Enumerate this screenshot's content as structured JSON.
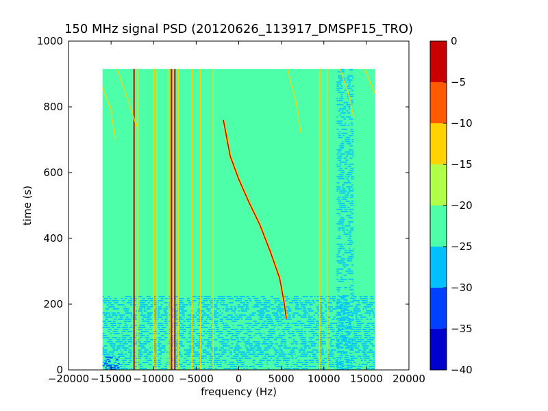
{
  "chart_data": {
    "type": "heatmap",
    "title": "150 MHz signal PSD (20120626_113917_DMSPF15_TRO)",
    "xlabel": "frequency (Hz)",
    "ylabel": "time (s)",
    "xlim": [
      -20000,
      20000
    ],
    "ylim": [
      0,
      1000
    ],
    "x_ticks": [
      -20000,
      -15000,
      -10000,
      -5000,
      0,
      5000,
      10000,
      15000,
      20000
    ],
    "y_ticks": [
      0,
      200,
      400,
      600,
      800,
      1000
    ],
    "data_extent": {
      "x": [
        -16000,
        16000
      ],
      "y": [
        0,
        915
      ]
    },
    "colorbar": {
      "ticks": [
        0,
        -5,
        -10,
        -15,
        -20,
        -25,
        -30,
        -35,
        -40
      ],
      "levels": [
        {
          "from": -40,
          "to": -35,
          "color": "#0000cd"
        },
        {
          "from": -35,
          "to": -30,
          "color": "#0040ff"
        },
        {
          "from": -30,
          "to": -25,
          "color": "#00c0ff"
        },
        {
          "from": -25,
          "to": -20,
          "color": "#4dffa8"
        },
        {
          "from": -20,
          "to": -15,
          "color": "#b0ff48"
        },
        {
          "from": -15,
          "to": -10,
          "color": "#ffd200"
        },
        {
          "from": -10,
          "to": -5,
          "color": "#ff5a00"
        },
        {
          "from": -5,
          "to": 0,
          "color": "#c80000"
        }
      ]
    },
    "background_level": -22.5,
    "features": [
      {
        "kind": "vertical_line",
        "freq": -12300,
        "t": [
          0,
          915
        ],
        "level": "red"
      },
      {
        "kind": "vertical_line",
        "freq": -11900,
        "t": [
          0,
          915
        ],
        "level": "yellow"
      },
      {
        "kind": "vertical_line",
        "freq": -10000,
        "t": [
          0,
          915
        ],
        "level": "yellow"
      },
      {
        "kind": "vertical_line",
        "freq": -9600,
        "t": [
          0,
          915
        ],
        "level": "yellow"
      },
      {
        "kind": "vertical_line",
        "freq": -8300,
        "t": [
          0,
          915
        ],
        "level": "yellow"
      },
      {
        "kind": "vertical_line",
        "freq": -7900,
        "t": [
          0,
          915
        ],
        "level": "red"
      },
      {
        "kind": "vertical_line",
        "freq": -7500,
        "t": [
          0,
          915
        ],
        "level": "red"
      },
      {
        "kind": "vertical_line",
        "freq": -7100,
        "t": [
          0,
          915
        ],
        "level": "yellow"
      },
      {
        "kind": "vertical_line",
        "freq": -5500,
        "t": [
          0,
          915
        ],
        "level": "yellow"
      },
      {
        "kind": "vertical_line",
        "freq": -4500,
        "t": [
          0,
          915
        ],
        "level": "yellow"
      },
      {
        "kind": "vertical_line",
        "freq": -3000,
        "t": [
          0,
          915
        ],
        "level": "yellow"
      },
      {
        "kind": "vertical_line",
        "freq": 9500,
        "t": [
          0,
          915
        ],
        "level": "yellow"
      },
      {
        "kind": "vertical_line",
        "freq": 10400,
        "t": [
          0,
          915
        ],
        "level": "yellow"
      },
      {
        "kind": "doppler_curve",
        "points": [
          [
            -1800,
            760
          ],
          [
            -1000,
            650
          ],
          [
            0,
            580
          ],
          [
            1200,
            510
          ],
          [
            2500,
            440
          ],
          [
            3700,
            360
          ],
          [
            4800,
            280
          ],
          [
            5300,
            210
          ],
          [
            5600,
            155
          ]
        ],
        "level": "red"
      },
      {
        "kind": "doppler_curve",
        "points": [
          [
            -16000,
            860
          ],
          [
            -15000,
            790
          ],
          [
            -14500,
            700
          ]
        ],
        "level": "yellow"
      },
      {
        "kind": "doppler_curve",
        "points": [
          [
            -14300,
            915
          ],
          [
            -13000,
            820
          ],
          [
            -12000,
            740
          ]
        ],
        "level": "yellow"
      },
      {
        "kind": "doppler_curve",
        "points": [
          [
            5700,
            915
          ],
          [
            6700,
            820
          ],
          [
            7300,
            720
          ]
        ],
        "level": "yellow"
      },
      {
        "kind": "doppler_curve",
        "points": [
          [
            11900,
            915
          ],
          [
            13000,
            830
          ],
          [
            13500,
            770
          ]
        ],
        "level": "yellow"
      },
      {
        "kind": "doppler_curve",
        "points": [
          [
            14800,
            915
          ],
          [
            15500,
            870
          ],
          [
            16000,
            840
          ]
        ],
        "level": "yellow"
      },
      {
        "kind": "noise_band",
        "freq": [
          -16000,
          16000
        ],
        "t": [
          0,
          225
        ],
        "level": -27.5
      },
      {
        "kind": "noise_band",
        "freq": [
          11500,
          13500
        ],
        "t": [
          0,
          915
        ],
        "level": -27.5
      },
      {
        "kind": "noise_band",
        "freq": [
          -16000,
          -14000
        ],
        "t": [
          0,
          40
        ],
        "level": -32.5
      }
    ]
  }
}
